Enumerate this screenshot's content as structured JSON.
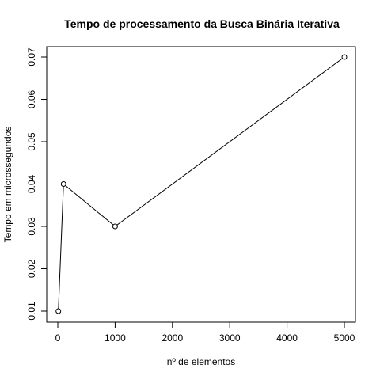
{
  "chart_data": {
    "type": "line",
    "title": "Tempo de processamento da Busca Binária Iterativa",
    "xlabel": "nº de elementos",
    "ylabel": "Tempo em microssegundos",
    "x": [
      10,
      100,
      1000,
      5000
    ],
    "series": [
      {
        "values": [
          0.01,
          0.04,
          0.03,
          0.07
        ]
      }
    ],
    "xlim": [
      0,
      5000
    ],
    "ylim": [
      0.01,
      0.07
    ],
    "xticks": [
      0,
      1000,
      2000,
      3000,
      4000,
      5000
    ],
    "xtick_labels": [
      "0",
      "1000",
      "2000",
      "3000",
      "4000",
      "5000"
    ],
    "yticks": [
      0.01,
      0.02,
      0.03,
      0.04,
      0.05,
      0.06,
      0.07
    ],
    "ytick_labels": [
      "0.01",
      "0.02",
      "0.03",
      "0.04",
      "0.05",
      "0.06",
      "0.07"
    ],
    "markers": "open-circle",
    "grid": false,
    "legend": false,
    "colors": {
      "line": "#000000",
      "marker_fill": "#ffffff",
      "background": "#ffffff"
    }
  }
}
